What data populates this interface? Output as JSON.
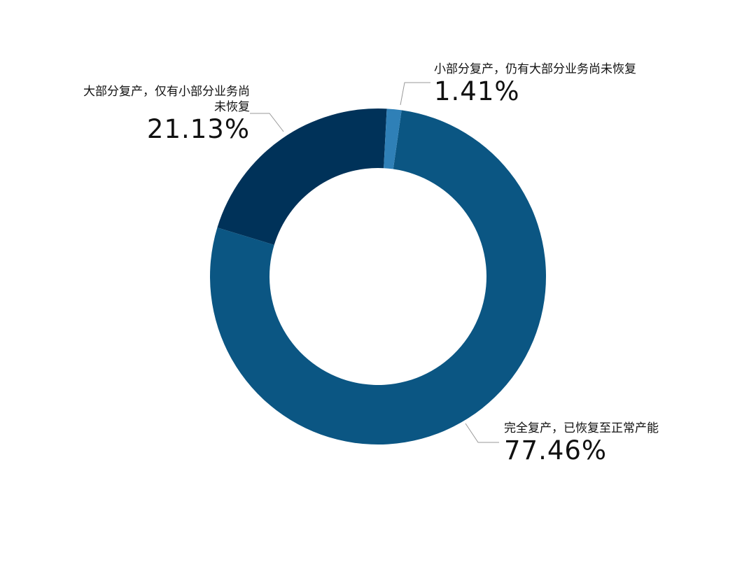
{
  "chart_data": {
    "type": "donut",
    "categories": [
      "小部分复产，仍有大部分业务尚未恢复",
      "完全复产，已恢复至正常产能",
      "大部分复产，仅有小部分业务尚未恢复"
    ],
    "values": [
      1.41,
      77.46,
      21.13
    ],
    "value_labels": [
      "1.41%",
      "77.46%",
      "21.13%"
    ],
    "colors": [
      "#2f80b7",
      "#0b5683",
      "#003259"
    ]
  }
}
